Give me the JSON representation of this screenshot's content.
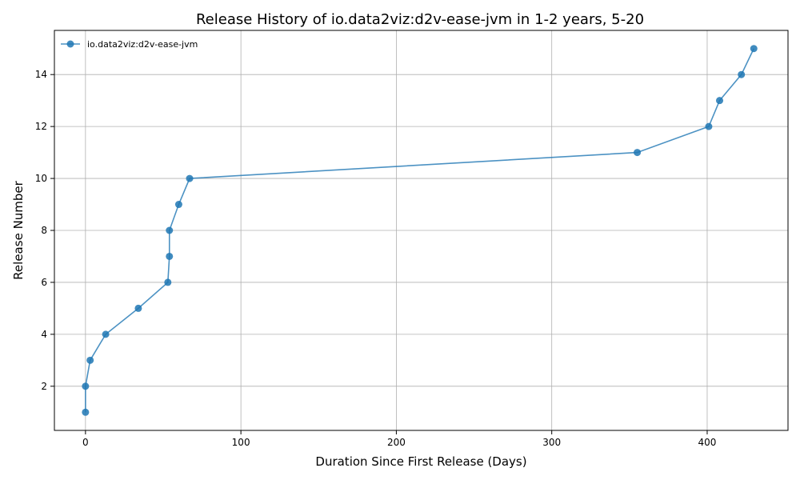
{
  "chart_data": {
    "type": "line",
    "title": "Release History of io.data2viz:d2v-ease-jvm in 1-2 years, 5-20",
    "xlabel": "Duration Since First Release (Days)",
    "ylabel": "Release Number",
    "xlim": [
      -20,
      452
    ],
    "ylim": [
      0.3,
      15.7
    ],
    "xticks": [
      0,
      100,
      200,
      300,
      400
    ],
    "yticks": [
      2,
      4,
      6,
      8,
      10,
      12,
      14
    ],
    "grid": true,
    "legend": "top-left",
    "series": [
      {
        "name": "io.data2viz:d2v-ease-jvm",
        "color": "#1f77b4",
        "x": [
          0,
          0,
          3,
          13,
          34,
          53,
          54,
          54,
          60,
          67,
          355,
          401,
          408,
          422,
          430
        ],
        "y": [
          1,
          2,
          3,
          4,
          5,
          6,
          7,
          8,
          9,
          10,
          11,
          12,
          13,
          14,
          15
        ]
      }
    ]
  }
}
